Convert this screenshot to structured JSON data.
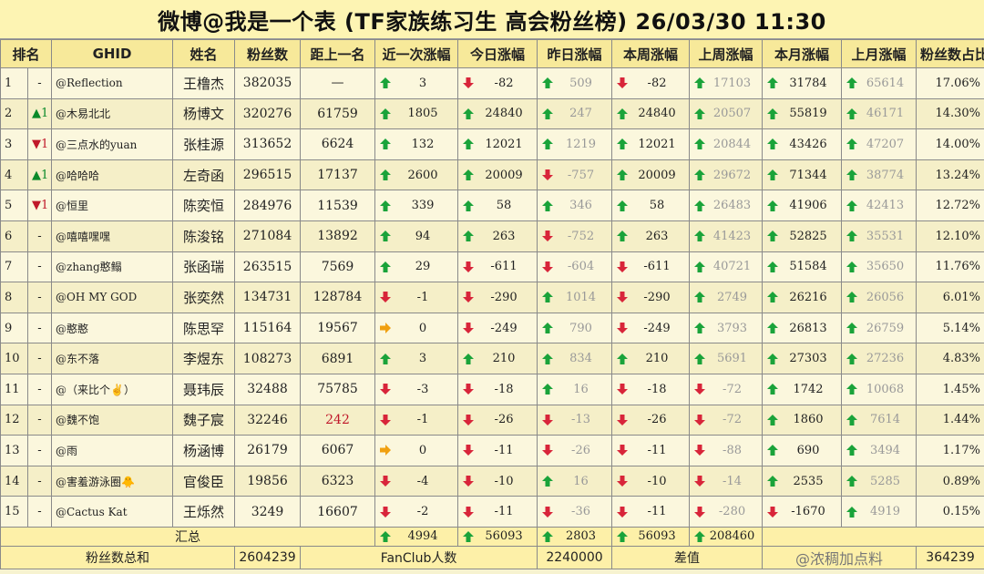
{
  "title": "微博@我是一个表 (TF家族练习生 高会粉丝榜)  26/03/30 11:30",
  "headers": [
    "排名",
    "GHID",
    "姓名",
    "粉丝数",
    "距上一名",
    "近一次涨幅",
    "今日涨幅",
    "昨日涨幅",
    "本周涨幅",
    "上周涨幅",
    "本月涨幅",
    "上月涨幅",
    "粉丝数占比"
  ],
  "rows": [
    {
      "rank": "1",
      "move": "-",
      "ghid": "@Reflection",
      "name": "王橹杰",
      "fans": "382035",
      "gap": "—",
      "recent": "3",
      "today": "-82",
      "yest": "509",
      "week": "-82",
      "lweek": "17103",
      "month": "31784",
      "lmonth": "65614",
      "pct": "17.06%"
    },
    {
      "rank": "2",
      "move": "▲1",
      "ghid": "@木易北北",
      "name": "杨博文",
      "fans": "320276",
      "gap": "61759",
      "recent": "1805",
      "today": "24840",
      "yest": "247",
      "week": "24840",
      "lweek": "20507",
      "month": "55819",
      "lmonth": "46171",
      "pct": "14.30%"
    },
    {
      "rank": "3",
      "move": "▼1",
      "ghid": "@三点水的yuan",
      "name": "张桂源",
      "fans": "313652",
      "gap": "6624",
      "recent": "132",
      "today": "12021",
      "yest": "1219",
      "week": "12021",
      "lweek": "20844",
      "month": "43426",
      "lmonth": "47207",
      "pct": "14.00%"
    },
    {
      "rank": "4",
      "move": "▲1",
      "ghid": "@哈哈哈",
      "name": "左奇函",
      "fans": "296515",
      "gap": "17137",
      "recent": "2600",
      "today": "20009",
      "yest": "-757",
      "week": "20009",
      "lweek": "29672",
      "month": "71344",
      "lmonth": "38774",
      "pct": "13.24%"
    },
    {
      "rank": "5",
      "move": "▼1",
      "ghid": "@恒里",
      "name": "陈奕恒",
      "fans": "284976",
      "gap": "11539",
      "recent": "339",
      "today": "58",
      "yest": "346",
      "week": "58",
      "lweek": "26483",
      "month": "41906",
      "lmonth": "42413",
      "pct": "12.72%"
    },
    {
      "rank": "6",
      "move": "-",
      "ghid": "@嘻嘻嘿嘿",
      "name": "陈浚铭",
      "fans": "271084",
      "gap": "13892",
      "recent": "94",
      "today": "263",
      "yest": "-752",
      "week": "263",
      "lweek": "41423",
      "month": "52825",
      "lmonth": "35531",
      "pct": "12.10%"
    },
    {
      "rank": "7",
      "move": "-",
      "ghid": "@zhang憨鳎",
      "name": "张函瑞",
      "fans": "263515",
      "gap": "7569",
      "recent": "29",
      "today": "-611",
      "yest": "-604",
      "week": "-611",
      "lweek": "40721",
      "month": "51584",
      "lmonth": "35650",
      "pct": "11.76%"
    },
    {
      "rank": "8",
      "move": "-",
      "ghid": "@OH MY GOD",
      "name": "张奕然",
      "fans": "134731",
      "gap": "128784",
      "recent": "-1",
      "today": "-290",
      "yest": "1014",
      "week": "-290",
      "lweek": "2749",
      "month": "26216",
      "lmonth": "26056",
      "pct": "6.01%"
    },
    {
      "rank": "9",
      "move": "-",
      "ghid": "@憨憨",
      "name": "陈思罕",
      "fans": "115164",
      "gap": "19567",
      "recent": "0",
      "today": "-249",
      "yest": "790",
      "week": "-249",
      "lweek": "3793",
      "month": "26813",
      "lmonth": "26759",
      "pct": "5.14%"
    },
    {
      "rank": "10",
      "move": "-",
      "ghid": "@东不落",
      "name": "李煜东",
      "fans": "108273",
      "gap": "6891",
      "recent": "3",
      "today": "210",
      "yest": "834",
      "week": "210",
      "lweek": "5691",
      "month": "27303",
      "lmonth": "27236",
      "pct": "4.83%"
    },
    {
      "rank": "11",
      "move": "-",
      "ghid": "@（来比个✌）",
      "name": "聂玮辰",
      "fans": "32488",
      "gap": "75785",
      "recent": "-3",
      "today": "-18",
      "yest": "16",
      "week": "-18",
      "lweek": "-72",
      "month": "1742",
      "lmonth": "10068",
      "pct": "1.45%"
    },
    {
      "rank": "12",
      "move": "-",
      "ghid": "@魏不饱",
      "name": "魏子宸",
      "fans": "32246",
      "gap": "242",
      "recent": "-1",
      "today": "-26",
      "yest": "-13",
      "week": "-26",
      "lweek": "-72",
      "month": "1860",
      "lmonth": "7614",
      "pct": "1.44%"
    },
    {
      "rank": "13",
      "move": "-",
      "ghid": "@雨",
      "name": "杨涵博",
      "fans": "26179",
      "gap": "6067",
      "recent": "0",
      "today": "-11",
      "yest": "-26",
      "week": "-11",
      "lweek": "-88",
      "month": "690",
      "lmonth": "3494",
      "pct": "1.17%"
    },
    {
      "rank": "14",
      "move": "-",
      "ghid": "@害羞游泳圈🐥",
      "name": "官俊臣",
      "fans": "19856",
      "gap": "6323",
      "recent": "-4",
      "today": "-10",
      "yest": "16",
      "week": "-10",
      "lweek": "-14",
      "month": "2535",
      "lmonth": "5285",
      "pct": "0.89%"
    },
    {
      "rank": "15",
      "move": "-",
      "ghid": "@Cactus Kat",
      "name": "王烁然",
      "fans": "3249",
      "gap": "16607",
      "recent": "-2",
      "today": "-11",
      "yest": "-36",
      "week": "-11",
      "lweek": "-280",
      "month": "-1670",
      "lmonth": "4919",
      "pct": "0.15%"
    }
  ],
  "summary": {
    "label": "汇总",
    "recent": "4994",
    "today": "56093",
    "yest": "2803",
    "week": "56093",
    "lweek": "208460"
  },
  "footer": {
    "total_label": "粉丝数总和",
    "total_value": "2604239",
    "fanclub_label": "FanClub人数",
    "fanclub_value": "2240000",
    "diff_label": "差值",
    "diff_value": "364239"
  },
  "watermark": "@浓稠加点料",
  "colors": {
    "up": "#1aa33a",
    "down": "#d8253a",
    "flat": "#f0a010"
  }
}
